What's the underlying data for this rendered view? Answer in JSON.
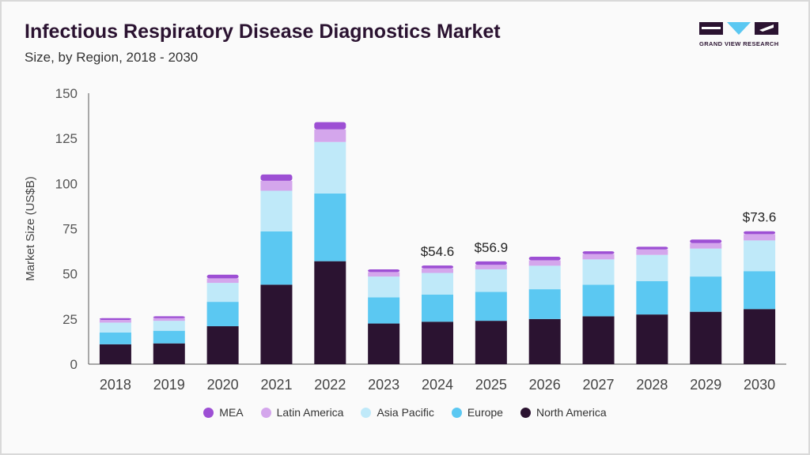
{
  "header": {
    "title": "Infectious Respiratory Disease Diagnostics Market",
    "subtitle": "Size, by Region, 2018 - 2030",
    "logo_text": "GRAND VIEW RESEARCH"
  },
  "chart_data": {
    "type": "bar",
    "stacked": true,
    "title": "Infectious Respiratory Disease Diagnostics Market",
    "subtitle": "Size, by Region, 2018 - 2030",
    "xlabel": "",
    "ylabel": "Market Size (US$B)",
    "ylim": [
      0,
      150
    ],
    "yticks": [
      0,
      25,
      50,
      75,
      100,
      125,
      150
    ],
    "categories": [
      "2018",
      "2019",
      "2020",
      "2021",
      "2022",
      "2023",
      "2024",
      "2025",
      "2026",
      "2027",
      "2028",
      "2029",
      "2030"
    ],
    "series": [
      {
        "name": "North America",
        "color": "#2b1331",
        "values": [
          11.0,
          11.5,
          21.0,
          44.0,
          57.0,
          22.5,
          23.5,
          24.0,
          25.0,
          26.5,
          27.5,
          29.0,
          30.5
        ]
      },
      {
        "name": "Europe",
        "color": "#5bc8f2",
        "values": [
          6.5,
          7.0,
          13.5,
          29.5,
          37.5,
          14.5,
          15.0,
          16.0,
          16.5,
          17.5,
          18.5,
          19.5,
          21.0
        ]
      },
      {
        "name": "Asia Pacific",
        "color": "#bfe9f9",
        "values": [
          5.5,
          5.5,
          10.5,
          22.5,
          28.5,
          11.5,
          12.0,
          12.5,
          13.0,
          14.0,
          14.5,
          15.5,
          17.0
        ]
      },
      {
        "name": "Latin America",
        "color": "#d4a6ec",
        "values": [
          1.5,
          1.5,
          2.5,
          5.5,
          7.0,
          2.5,
          2.5,
          2.5,
          3.0,
          3.0,
          3.0,
          3.0,
          3.5
        ]
      },
      {
        "name": "MEA",
        "color": "#9d4fd4",
        "values": [
          1.0,
          1.0,
          2.0,
          3.5,
          4.0,
          1.5,
          1.6,
          1.9,
          2.0,
          1.5,
          1.5,
          2.0,
          1.6
        ]
      }
    ],
    "data_labels": [
      {
        "category": "2024",
        "text": "$54.6"
      },
      {
        "category": "2025",
        "text": "$56.9"
      },
      {
        "category": "2030",
        "text": "$73.6"
      }
    ],
    "legend_order": [
      "MEA",
      "Latin America",
      "Asia Pacific",
      "Europe",
      "North America"
    ],
    "legend_position": "bottom-center",
    "grid": false
  }
}
